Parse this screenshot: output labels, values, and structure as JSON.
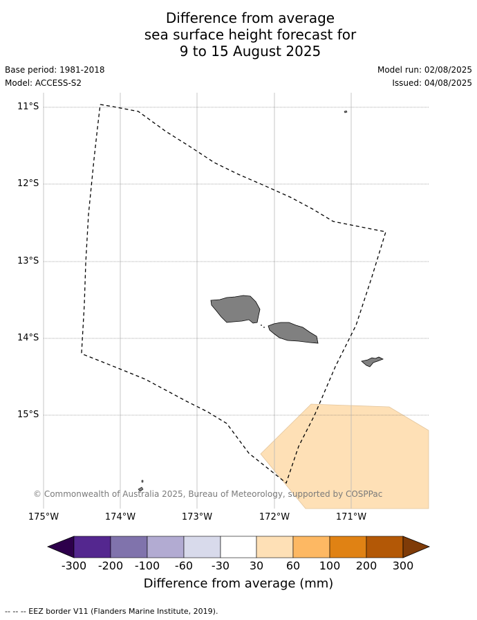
{
  "title": {
    "line1": "Difference from average",
    "line2": "sea surface height forecast for",
    "line3": "9 to 15 August 2025"
  },
  "meta": {
    "base_period": "Base period: 1981-2018",
    "model": "Model: ACCESS-S2",
    "model_run": "Model run: 02/08/2025",
    "issued": "Issued: 04/08/2025"
  },
  "map": {
    "lat_labels": [
      "11°S",
      "12°S",
      "13°S",
      "14°S",
      "15°S"
    ],
    "lon_labels": [
      "175°W",
      "174°W",
      "173°W",
      "172°W",
      "171°W"
    ],
    "extent": {
      "lon_min": -175,
      "lon_max": -170.0,
      "lat_min": -16.2,
      "lat_max": -10.8
    },
    "land_color": "#808080",
    "anomaly_fill_color": "#fee0b6",
    "anomaly_class": "30 to 60 mm",
    "eez_line_style": "dashed black",
    "copyright": "© Commonwealth of Australia 2025, Bureau of Meteorology, supported by COSPPac"
  },
  "colorbar": {
    "tick_labels": [
      "-300",
      "-200",
      "-100",
      "-60",
      "-30",
      "30",
      "60",
      "100",
      "200",
      "300"
    ],
    "colors": [
      "#54278f",
      "#8073ac",
      "#b2abd2",
      "#d8daeb",
      "#ffffff",
      "#fee0b6",
      "#fdb863",
      "#e08214",
      "#b35806"
    ],
    "under_color": "#2d004b",
    "over_color": "#7f3b08",
    "label": "Difference from average (mm)"
  },
  "footer": {
    "legend": "--  --  -- EEZ border V11 (Flanders Marine Institute, 2019)."
  }
}
